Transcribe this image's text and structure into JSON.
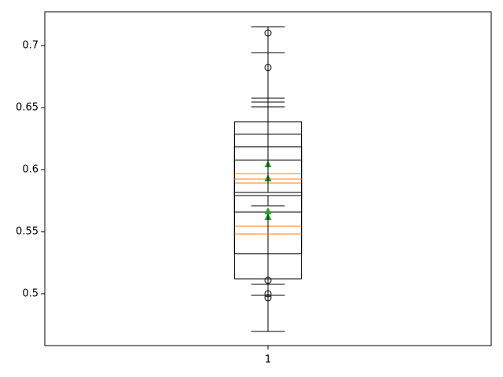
{
  "chart_data": {
    "type": "box",
    "xlim": [
      0.5,
      1.5
    ],
    "xticks": [
      1
    ],
    "ylim": [
      0.4582,
      0.7272
    ],
    "yticks": [
      0.5,
      0.55,
      0.6,
      0.65,
      0.7
    ],
    "box_color": "#000000",
    "median_color": "#ff7f0e",
    "mean_color": "#2ca02c",
    "boxes": [
      {
        "x": 1,
        "whislo": 0.4696,
        "q1": 0.512,
        "med": 0.5892,
        "q3": 0.6386,
        "whishi": 0.7152,
        "mean": 0.593,
        "fliers": []
      },
      {
        "x": 1,
        "whislo": 0.4987,
        "q1": 0.5323,
        "med": 0.5544,
        "q3": 0.6184,
        "whishi": 0.6576,
        "mean": 0.562,
        "fliers": []
      },
      {
        "x": 1,
        "whislo": 0.4987,
        "q1": 0.5658,
        "med": 0.5968,
        "q3": 0.6285,
        "whishi": 0.6943,
        "mean": 0.6044,
        "fliers": [
          0.7101
        ]
      },
      {
        "x": 1,
        "whislo": 0.5709,
        "q1": 0.5791,
        "med": 0.5924,
        "q3": 0.6076,
        "whishi": 0.6506,
        "mean": 0.593,
        "fliers": [
          0.5108,
          0.4968
        ]
      },
      {
        "x": 1,
        "whislo": 0.5076,
        "q1": 0.5323,
        "med": 0.5481,
        "q3": 0.5816,
        "whishi": 0.6544,
        "mean": 0.5665,
        "fliers": [
          0.5,
          0.6823
        ]
      }
    ]
  }
}
